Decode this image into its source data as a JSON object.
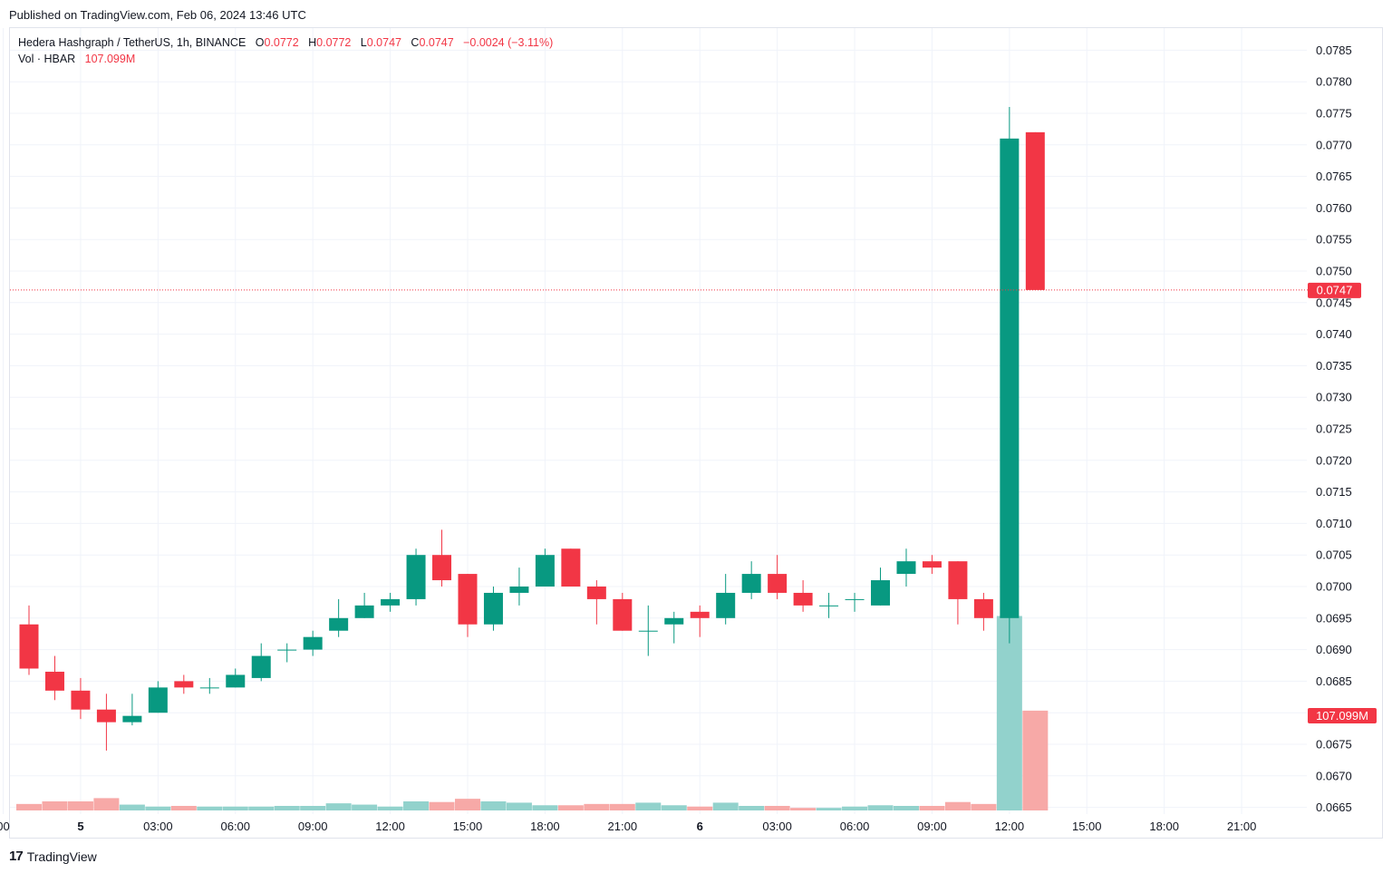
{
  "published": "Published on TradingView.com, Feb 06, 2024 13:46 UTC",
  "legend": {
    "symbol": "Hedera Hashgraph / TetherUS, 1h, BINANCE",
    "o_label": "O",
    "o": "0.0772",
    "h_label": "H",
    "h": "0.0772",
    "l_label": "L",
    "l": "0.0747",
    "c_label": "C",
    "c": "0.0747",
    "change": "−0.0024 (−3.11%)",
    "vol_label": "Vol · HBAR",
    "vol": "107.099M"
  },
  "footer": {
    "logo": "17",
    "brand": "TradingView"
  },
  "colors": {
    "up": "#089981",
    "down": "#f23645",
    "vol_up": "#92d2cc",
    "vol_down": "#f7a9a7",
    "grid": "#f0f3fa"
  },
  "chart_data": {
    "type": "candlestick",
    "ylim": [
      0.06625,
      0.07875
    ],
    "y_ticks": [
      "0.0665",
      "0.0670",
      "0.0675",
      "0.0680",
      "0.0685",
      "0.0690",
      "0.0695",
      "0.0700",
      "0.0705",
      "0.0710",
      "0.0715",
      "0.0720",
      "0.0725",
      "0.0730",
      "0.0735",
      "0.0740",
      "0.0745",
      "0.0750",
      "0.0755",
      "0.0760",
      "0.0765",
      "0.0770",
      "0.0775",
      "0.0780",
      "0.0785"
    ],
    "x_ticks": [
      {
        "i": -1,
        "label": "00"
      },
      {
        "i": 2,
        "label": "5"
      },
      {
        "i": 5,
        "label": "03:00"
      },
      {
        "i": 8,
        "label": "06:00"
      },
      {
        "i": 11,
        "label": "09:00"
      },
      {
        "i": 14,
        "label": "12:00"
      },
      {
        "i": 17,
        "label": "15:00"
      },
      {
        "i": 20,
        "label": "18:00"
      },
      {
        "i": 23,
        "label": "21:00"
      },
      {
        "i": 26,
        "label": "6"
      },
      {
        "i": 29,
        "label": "03:00"
      },
      {
        "i": 32,
        "label": "06:00"
      },
      {
        "i": 35,
        "label": "09:00"
      },
      {
        "i": 38,
        "label": "12:00"
      },
      {
        "i": 41,
        "label": "15:00"
      },
      {
        "i": 44,
        "label": "18:00"
      },
      {
        "i": 47,
        "label": "21:00"
      }
    ],
    "last_price": "0.0747",
    "last_price_value": 0.0747,
    "volume_label": "107.099M",
    "candles": [
      {
        "o": 0.0694,
        "h": 0.0697,
        "l": 0.0686,
        "c": 0.0687,
        "v": 1.0
      },
      {
        "o": 0.06865,
        "h": 0.0689,
        "l": 0.0682,
        "c": 0.06835,
        "v": 1.4
      },
      {
        "o": 0.06835,
        "h": 0.06855,
        "l": 0.0679,
        "c": 0.06805,
        "v": 1.4
      },
      {
        "o": 0.06805,
        "h": 0.0683,
        "l": 0.0674,
        "c": 0.06785,
        "v": 1.9
      },
      {
        "o": 0.06785,
        "h": 0.0683,
        "l": 0.0678,
        "c": 0.06795,
        "v": 0.9
      },
      {
        "o": 0.068,
        "h": 0.0685,
        "l": 0.068,
        "c": 0.0684,
        "v": 0.6
      },
      {
        "o": 0.0685,
        "h": 0.0686,
        "l": 0.0683,
        "c": 0.0684,
        "v": 0.7
      },
      {
        "o": 0.0684,
        "h": 0.06855,
        "l": 0.0683,
        "c": 0.0684,
        "v": 0.6
      },
      {
        "o": 0.0684,
        "h": 0.0687,
        "l": 0.0684,
        "c": 0.0686,
        "v": 0.6
      },
      {
        "o": 0.06855,
        "h": 0.0691,
        "l": 0.0685,
        "c": 0.0689,
        "v": 0.6
      },
      {
        "o": 0.069,
        "h": 0.0691,
        "l": 0.0688,
        "c": 0.069,
        "v": 0.7
      },
      {
        "o": 0.069,
        "h": 0.0693,
        "l": 0.0689,
        "c": 0.0692,
        "v": 0.7
      },
      {
        "o": 0.0693,
        "h": 0.0698,
        "l": 0.0692,
        "c": 0.0695,
        "v": 1.1
      },
      {
        "o": 0.0695,
        "h": 0.0699,
        "l": 0.0695,
        "c": 0.0697,
        "v": 0.9
      },
      {
        "o": 0.0697,
        "h": 0.0699,
        "l": 0.0696,
        "c": 0.0698,
        "v": 0.6
      },
      {
        "o": 0.0698,
        "h": 0.0706,
        "l": 0.0697,
        "c": 0.0705,
        "v": 1.4
      },
      {
        "o": 0.0705,
        "h": 0.0709,
        "l": 0.07,
        "c": 0.0701,
        "v": 1.3
      },
      {
        "o": 0.0702,
        "h": 0.0702,
        "l": 0.0692,
        "c": 0.0694,
        "v": 1.8
      },
      {
        "o": 0.0694,
        "h": 0.07,
        "l": 0.0693,
        "c": 0.0699,
        "v": 1.4
      },
      {
        "o": 0.0699,
        "h": 0.0703,
        "l": 0.0697,
        "c": 0.07,
        "v": 1.2
      },
      {
        "o": 0.07,
        "h": 0.0706,
        "l": 0.07,
        "c": 0.0705,
        "v": 0.8
      },
      {
        "o": 0.0706,
        "h": 0.0706,
        "l": 0.07,
        "c": 0.07,
        "v": 0.8
      },
      {
        "o": 0.07,
        "h": 0.0701,
        "l": 0.0694,
        "c": 0.0698,
        "v": 1.0
      },
      {
        "o": 0.0698,
        "h": 0.0699,
        "l": 0.0693,
        "c": 0.0693,
        "v": 1.0
      },
      {
        "o": 0.0693,
        "h": 0.0697,
        "l": 0.0689,
        "c": 0.0693,
        "v": 1.2
      },
      {
        "o": 0.0694,
        "h": 0.0696,
        "l": 0.0691,
        "c": 0.0695,
        "v": 0.8
      },
      {
        "o": 0.0696,
        "h": 0.0697,
        "l": 0.0692,
        "c": 0.0695,
        "v": 0.6
      },
      {
        "o": 0.0695,
        "h": 0.0702,
        "l": 0.0694,
        "c": 0.0699,
        "v": 1.2
      },
      {
        "o": 0.0699,
        "h": 0.0704,
        "l": 0.0698,
        "c": 0.0702,
        "v": 0.7
      },
      {
        "o": 0.0702,
        "h": 0.0705,
        "l": 0.0698,
        "c": 0.0699,
        "v": 0.7
      },
      {
        "o": 0.0699,
        "h": 0.0701,
        "l": 0.0696,
        "c": 0.0697,
        "v": 0.4
      },
      {
        "o": 0.0697,
        "h": 0.0699,
        "l": 0.0695,
        "c": 0.0697,
        "v": 0.4
      },
      {
        "o": 0.0698,
        "h": 0.0699,
        "l": 0.0696,
        "c": 0.0698,
        "v": 0.6
      },
      {
        "o": 0.0697,
        "h": 0.0703,
        "l": 0.0697,
        "c": 0.0701,
        "v": 0.8
      },
      {
        "o": 0.0702,
        "h": 0.0706,
        "l": 0.07,
        "c": 0.0704,
        "v": 0.7
      },
      {
        "o": 0.0704,
        "h": 0.0705,
        "l": 0.0702,
        "c": 0.0703,
        "v": 0.7
      },
      {
        "o": 0.0704,
        "h": 0.0704,
        "l": 0.0694,
        "c": 0.0698,
        "v": 1.3
      },
      {
        "o": 0.0698,
        "h": 0.0699,
        "l": 0.0693,
        "c": 0.0695,
        "v": 1.0
      },
      {
        "o": 0.0695,
        "h": 0.0776,
        "l": 0.0691,
        "c": 0.0771,
        "v": 30.0
      },
      {
        "o": 0.0772,
        "h": 0.0772,
        "l": 0.0747,
        "c": 0.0747,
        "v": 15.4
      }
    ]
  }
}
